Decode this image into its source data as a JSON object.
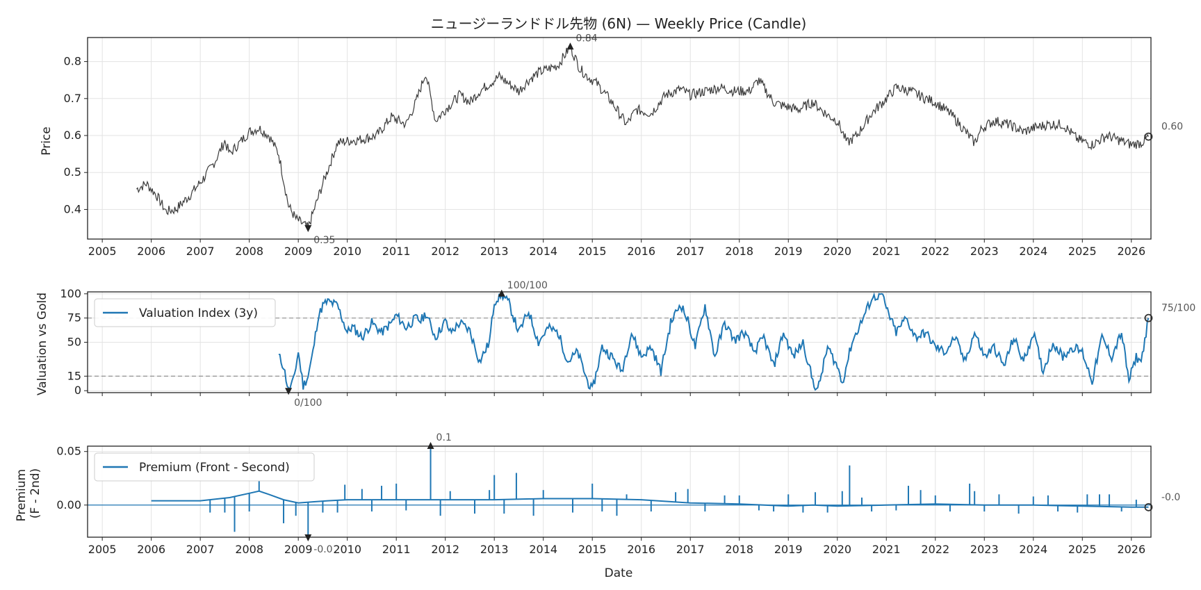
{
  "chart_data": [
    {
      "type": "line",
      "title": "ニュージーランドドル先物 (6N) — Weekly Price (Candle)",
      "ylabel": "Price",
      "xlim": [
        2004.7,
        2026.4
      ],
      "ylim": [
        0.32,
        0.865
      ],
      "yticks": [
        0.4,
        0.5,
        0.6,
        0.7,
        0.8
      ],
      "ytick_labels": [
        "0.4",
        "0.5",
        "0.6",
        "0.7",
        "0.8"
      ],
      "xticks": [
        2005,
        2006,
        2007,
        2008,
        2009,
        2010,
        2011,
        2012,
        2013,
        2014,
        2015,
        2016,
        2017,
        2018,
        2019,
        2020,
        2021,
        2022,
        2023,
        2024,
        2025,
        2026
      ],
      "grid": true,
      "color": "#3a3a3a",
      "x": [
        2005.7,
        2005.9,
        2006.1,
        2006.3,
        2006.5,
        2006.8,
        2007.1,
        2007.3,
        2007.5,
        2007.6,
        2007.8,
        2008.0,
        2008.2,
        2008.4,
        2008.6,
        2008.8,
        2008.95,
        2009.1,
        2009.2,
        2009.5,
        2009.8,
        2010.0,
        2010.3,
        2010.6,
        2010.9,
        2011.2,
        2011.4,
        2011.6,
        2011.8,
        2012.0,
        2012.3,
        2012.5,
        2012.7,
        2012.9,
        2013.1,
        2013.3,
        2013.5,
        2013.7,
        2013.9,
        2014.1,
        2014.3,
        2014.55,
        2014.75,
        2014.9,
        2015.1,
        2015.4,
        2015.7,
        2015.9,
        2016.2,
        2016.5,
        2016.8,
        2017.0,
        2017.3,
        2017.6,
        2017.9,
        2018.2,
        2018.4,
        2018.7,
        2018.9,
        2019.2,
        2019.5,
        2019.8,
        2020.0,
        2020.2,
        2020.4,
        2020.7,
        2021.0,
        2021.2,
        2021.5,
        2021.8,
        2022.0,
        2022.3,
        2022.5,
        2022.8,
        2022.95,
        2023.2,
        2023.5,
        2023.8,
        2024.0,
        2024.3,
        2024.6,
        2024.9,
        2025.2,
        2025.5,
        2025.8,
        2026.0,
        2026.2,
        2026.35
      ],
      "y": [
        0.455,
        0.47,
        0.44,
        0.395,
        0.4,
        0.44,
        0.49,
        0.53,
        0.585,
        0.55,
        0.58,
        0.61,
        0.62,
        0.6,
        0.55,
        0.41,
        0.375,
        0.36,
        0.35,
        0.47,
        0.58,
        0.585,
        0.59,
        0.6,
        0.65,
        0.63,
        0.69,
        0.77,
        0.64,
        0.67,
        0.71,
        0.69,
        0.72,
        0.74,
        0.76,
        0.74,
        0.72,
        0.75,
        0.77,
        0.78,
        0.79,
        0.84,
        0.78,
        0.76,
        0.74,
        0.69,
        0.63,
        0.67,
        0.66,
        0.71,
        0.725,
        0.71,
        0.72,
        0.73,
        0.72,
        0.72,
        0.75,
        0.69,
        0.68,
        0.67,
        0.69,
        0.655,
        0.64,
        0.58,
        0.6,
        0.66,
        0.7,
        0.73,
        0.72,
        0.7,
        0.69,
        0.66,
        0.63,
        0.58,
        0.62,
        0.64,
        0.63,
        0.61,
        0.62,
        0.63,
        0.63,
        0.59,
        0.575,
        0.6,
        0.585,
        0.575,
        0.58,
        0.597
      ],
      "annotations": [
        {
          "x": 2014.55,
          "y": 0.84,
          "label": "0.84",
          "marker": "up"
        },
        {
          "x": 2009.2,
          "y": 0.35,
          "label": "0.35",
          "marker": "down"
        },
        {
          "x": 2026.35,
          "y": 0.597,
          "label": "0.60",
          "marker": "circle"
        }
      ]
    },
    {
      "type": "line",
      "ylabel": "Valuation vs Gold",
      "xlim": [
        2004.7,
        2026.4
      ],
      "ylim": [
        -2,
        102
      ],
      "yticks": [
        0,
        15,
        50,
        75,
        100
      ],
      "ytick_labels": [
        "0",
        "15",
        "50",
        "75",
        "100"
      ],
      "hlines": [
        15,
        75
      ],
      "grid": true,
      "legend": "top-left",
      "series": [
        {
          "name": "Valuation Index (3y)",
          "color": "#1f77b4",
          "x": [
            2008.6,
            2008.7,
            2008.8,
            2008.9,
            2009.0,
            2009.1,
            2009.2,
            2009.3,
            2009.4,
            2009.5,
            2009.6,
            2009.8,
            2010.0,
            2010.1,
            2010.3,
            2010.5,
            2010.7,
            2010.9,
            2011.0,
            2011.2,
            2011.4,
            2011.5,
            2011.6,
            2011.8,
            2012.0,
            2012.1,
            2012.3,
            2012.5,
            2012.7,
            2012.9,
            2013.0,
            2013.15,
            2013.3,
            2013.5,
            2013.7,
            2013.9,
            2014.1,
            2014.3,
            2014.5,
            2014.7,
            2014.9,
            2015.0,
            2015.2,
            2015.4,
            2015.6,
            2015.8,
            2016.0,
            2016.2,
            2016.4,
            2016.6,
            2016.8,
            2016.95,
            2017.1,
            2017.3,
            2017.5,
            2017.7,
            2017.9,
            2018.1,
            2018.3,
            2018.5,
            2018.7,
            2018.9,
            2019.1,
            2019.3,
            2019.5,
            2019.6,
            2019.8,
            2020.0,
            2020.1,
            2020.3,
            2020.5,
            2020.7,
            2020.9,
            2021.0,
            2021.2,
            2021.4,
            2021.6,
            2021.8,
            2022.0,
            2022.2,
            2022.4,
            2022.6,
            2022.8,
            2023.0,
            2023.2,
            2023.4,
            2023.6,
            2023.8,
            2024.0,
            2024.2,
            2024.4,
            2024.6,
            2024.8,
            2025.0,
            2025.2,
            2025.4,
            2025.6,
            2025.8,
            2025.95,
            2026.1,
            2026.2,
            2026.35
          ],
          "y": [
            36,
            25,
            0,
            10,
            40,
            5,
            15,
            40,
            75,
            88,
            92,
            88,
            60,
            66,
            55,
            70,
            60,
            70,
            78,
            65,
            75,
            72,
            80,
            55,
            72,
            60,
            70,
            62,
            30,
            50,
            92,
            100,
            90,
            60,
            82,
            50,
            65,
            60,
            30,
            40,
            10,
            0,
            45,
            35,
            20,
            60,
            35,
            45,
            20,
            70,
            90,
            72,
            45,
            88,
            35,
            70,
            52,
            60,
            40,
            55,
            25,
            60,
            35,
            50,
            10,
            0,
            45,
            25,
            8,
            50,
            72,
            95,
            100,
            85,
            60,
            75,
            55,
            60,
            45,
            40,
            55,
            30,
            60,
            35,
            45,
            25,
            55,
            30,
            60,
            20,
            50,
            35,
            45,
            40,
            10,
            55,
            35,
            60,
            10,
            35,
            30,
            75
          ]
        }
      ],
      "annotations": [
        {
          "x": 2013.15,
          "y": 100,
          "label": "100/100",
          "marker": "up"
        },
        {
          "x": 2008.8,
          "y": 0,
          "label": "0/100",
          "marker": "down"
        },
        {
          "x": 2026.35,
          "y": 75,
          "label": "75/100",
          "marker": "circle"
        }
      ]
    },
    {
      "type": "line",
      "ylabel": "Premium\n(F - 2nd)",
      "xlabel": "Date",
      "xlim": [
        2004.7,
        2026.4
      ],
      "ylim": [
        -0.03,
        0.055
      ],
      "yticks": [
        0.0,
        0.05
      ],
      "ytick_labels": [
        "0.00",
        "0.05"
      ],
      "xticks": [
        2005,
        2006,
        2007,
        2008,
        2009,
        2010,
        2011,
        2012,
        2013,
        2014,
        2015,
        2016,
        2017,
        2018,
        2019,
        2020,
        2021,
        2022,
        2023,
        2024,
        2025,
        2026
      ],
      "hlines": [
        0
      ],
      "grid": true,
      "legend": "top-left",
      "series": [
        {
          "name": "Premium (Front - Second)",
          "color": "#1f77b4",
          "x": [
            2006.0,
            2007.0,
            2007.6,
            2008.0,
            2008.2,
            2008.4,
            2008.7,
            2009.0,
            2009.3,
            2009.6,
            2010.0,
            2010.5,
            2011.0,
            2011.5,
            2012.0,
            2013.0,
            2014.0,
            2015.0,
            2016.0,
            2017.0,
            2018.0,
            2019.0,
            2019.5,
            2020.0,
            2021.0,
            2022.0,
            2023.0,
            2024.0,
            2025.0,
            2026.0,
            2026.35
          ],
          "y": [
            0.004,
            0.004,
            0.007,
            0.011,
            0.013,
            0.01,
            0.005,
            0.002,
            0.003,
            0.004,
            0.005,
            0.005,
            0.005,
            0.005,
            0.005,
            0.005,
            0.006,
            0.006,
            0.005,
            0.002,
            0.001,
            -0.001,
            0.0,
            -0.001,
            0.0,
            0.001,
            0.0,
            0.0,
            -0.001,
            -0.002,
            -0.002
          ],
          "spikes": [
            {
              "x": 2007.2,
              "y": -0.007
            },
            {
              "x": 2007.5,
              "y": -0.007
            },
            {
              "x": 2007.7,
              "y": -0.025
            },
            {
              "x": 2008.0,
              "y": -0.006
            },
            {
              "x": 2008.2,
              "y": 0.023
            },
            {
              "x": 2008.7,
              "y": -0.017
            },
            {
              "x": 2008.95,
              "y": -0.01
            },
            {
              "x": 2009.2,
              "y": -0.03
            },
            {
              "x": 2009.5,
              "y": -0.007
            },
            {
              "x": 2009.8,
              "y": -0.007
            },
            {
              "x": 2009.95,
              "y": 0.019
            },
            {
              "x": 2010.3,
              "y": 0.015
            },
            {
              "x": 2010.5,
              "y": -0.006
            },
            {
              "x": 2010.7,
              "y": 0.018
            },
            {
              "x": 2011.0,
              "y": 0.02
            },
            {
              "x": 2011.2,
              "y": -0.005
            },
            {
              "x": 2011.7,
              "y": 0.1
            },
            {
              "x": 2011.9,
              "y": -0.01
            },
            {
              "x": 2012.1,
              "y": 0.013
            },
            {
              "x": 2012.6,
              "y": -0.008
            },
            {
              "x": 2012.9,
              "y": 0.014
            },
            {
              "x": 2013.0,
              "y": 0.028
            },
            {
              "x": 2013.2,
              "y": -0.008
            },
            {
              "x": 2013.45,
              "y": 0.03
            },
            {
              "x": 2013.8,
              "y": -0.01
            },
            {
              "x": 2014.0,
              "y": 0.014
            },
            {
              "x": 2014.6,
              "y": -0.007
            },
            {
              "x": 2015.0,
              "y": 0.02
            },
            {
              "x": 2015.2,
              "y": -0.006
            },
            {
              "x": 2015.5,
              "y": -0.01
            },
            {
              "x": 2015.7,
              "y": 0.01
            },
            {
              "x": 2016.2,
              "y": -0.006
            },
            {
              "x": 2016.7,
              "y": 0.012
            },
            {
              "x": 2016.95,
              "y": 0.015
            },
            {
              "x": 2017.3,
              "y": -0.006
            },
            {
              "x": 2017.7,
              "y": 0.009
            },
            {
              "x": 2018.0,
              "y": 0.009
            },
            {
              "x": 2018.4,
              "y": -0.005
            },
            {
              "x": 2018.7,
              "y": -0.006
            },
            {
              "x": 2019.0,
              "y": 0.01
            },
            {
              "x": 2019.3,
              "y": -0.007
            },
            {
              "x": 2019.55,
              "y": 0.012
            },
            {
              "x": 2019.8,
              "y": -0.007
            },
            {
              "x": 2020.1,
              "y": 0.013
            },
            {
              "x": 2020.25,
              "y": 0.037
            },
            {
              "x": 2020.5,
              "y": 0.007
            },
            {
              "x": 2020.7,
              "y": -0.006
            },
            {
              "x": 2021.2,
              "y": -0.005
            },
            {
              "x": 2021.45,
              "y": 0.018
            },
            {
              "x": 2021.7,
              "y": 0.014
            },
            {
              "x": 2022.0,
              "y": 0.009
            },
            {
              "x": 2022.3,
              "y": -0.006
            },
            {
              "x": 2022.7,
              "y": 0.02
            },
            {
              "x": 2022.8,
              "y": 0.013
            },
            {
              "x": 2023.0,
              "y": -0.006
            },
            {
              "x": 2023.3,
              "y": 0.01
            },
            {
              "x": 2023.7,
              "y": -0.008
            },
            {
              "x": 2024.0,
              "y": 0.008
            },
            {
              "x": 2024.3,
              "y": 0.009
            },
            {
              "x": 2024.5,
              "y": -0.006
            },
            {
              "x": 2024.9,
              "y": -0.007
            },
            {
              "x": 2025.1,
              "y": 0.01
            },
            {
              "x": 2025.35,
              "y": 0.01
            },
            {
              "x": 2025.55,
              "y": 0.01
            },
            {
              "x": 2025.8,
              "y": -0.006
            },
            {
              "x": 2026.1,
              "y": 0.005
            }
          ]
        }
      ],
      "annotations": [
        {
          "x": 2011.7,
          "y": 0.1,
          "label": "0.1",
          "marker": "up"
        },
        {
          "x": 2009.2,
          "y": -0.03,
          "label": "-0.0",
          "marker": "down"
        },
        {
          "x": 2026.35,
          "y": -0.002,
          "label": "-0.0",
          "marker": "circle"
        }
      ]
    }
  ]
}
